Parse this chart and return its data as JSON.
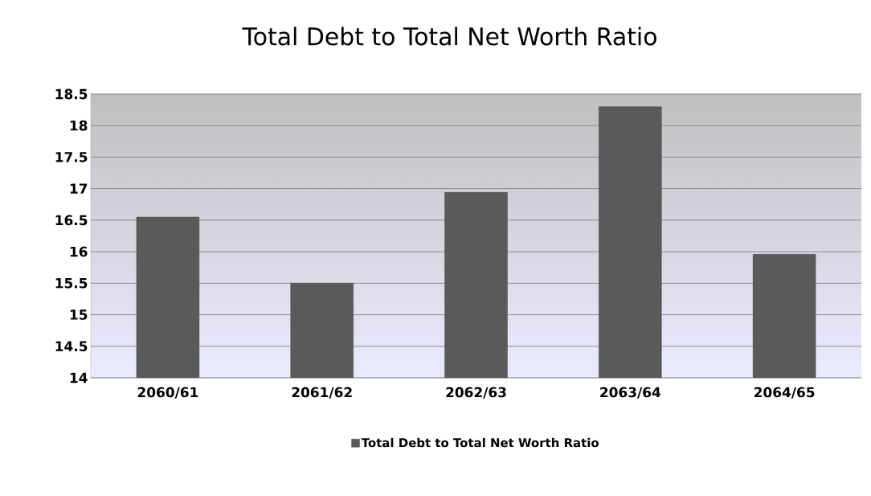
{
  "chart_data": {
    "type": "bar",
    "title": "Total Debt to Total Net Worth Ratio",
    "categories": [
      "2060/61",
      "2061/62",
      "2062/63",
      "2063/64",
      "2064/65"
    ],
    "series": [
      {
        "name": "Total Debt to Total Net Worth Ratio",
        "color": "#5a5a5a",
        "values": [
          16.55,
          15.5,
          16.94,
          18.3,
          15.96
        ]
      }
    ],
    "ylim": [
      14,
      18.5
    ],
    "yticks": [
      14,
      14.5,
      15,
      15.5,
      16,
      16.5,
      17,
      17.5,
      18,
      18.5
    ],
    "grid": "y",
    "legend": "bottom"
  }
}
